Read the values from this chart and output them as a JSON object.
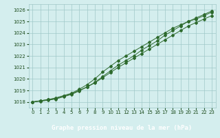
{
  "x": [
    0,
    1,
    2,
    3,
    4,
    5,
    6,
    7,
    8,
    9,
    10,
    11,
    12,
    13,
    14,
    15,
    16,
    17,
    18,
    19,
    20,
    21,
    22,
    23
  ],
  "line1": [
    1018.0,
    1018.1,
    1018.2,
    1018.3,
    1018.5,
    1018.7,
    1019.0,
    1019.3,
    1019.7,
    1020.2,
    1020.7,
    1021.2,
    1021.6,
    1022.0,
    1022.5,
    1022.9,
    1023.3,
    1023.8,
    1024.2,
    1024.6,
    1025.0,
    1025.2,
    1025.5,
    1025.8
  ],
  "line2": [
    1018.0,
    1018.1,
    1018.2,
    1018.35,
    1018.55,
    1018.75,
    1019.1,
    1019.5,
    1020.0,
    1020.6,
    1021.1,
    1021.6,
    1022.0,
    1022.4,
    1022.8,
    1023.2,
    1023.6,
    1024.0,
    1024.4,
    1024.7,
    1025.0,
    1025.3,
    1025.6,
    1025.9
  ],
  "line3": [
    1018.0,
    1018.05,
    1018.15,
    1018.25,
    1018.45,
    1018.65,
    1018.95,
    1019.3,
    1019.65,
    1020.1,
    1020.55,
    1021.0,
    1021.4,
    1021.8,
    1022.2,
    1022.6,
    1023.0,
    1023.4,
    1023.8,
    1024.2,
    1024.6,
    1024.9,
    1025.2,
    1025.5
  ],
  "line_color": "#2d6a2d",
  "bg_color": "#d4eeee",
  "grid_color": "#a0c8c8",
  "xlabel": "Graphe pression niveau de la mer (hPa)",
  "xlabel_bg": "#3d8a3d",
  "ylim": [
    1017.5,
    1026.5
  ],
  "yticks": [
    1018,
    1019,
    1020,
    1021,
    1022,
    1023,
    1024,
    1025,
    1026
  ],
  "xticks": [
    0,
    1,
    2,
    3,
    4,
    5,
    6,
    7,
    8,
    9,
    10,
    11,
    12,
    13,
    14,
    15,
    16,
    17,
    18,
    19,
    20,
    21,
    22,
    23
  ],
  "tick_color": "#1a4a1a",
  "tick_fontsize": 5.0,
  "xlabel_fontsize": 6.5
}
